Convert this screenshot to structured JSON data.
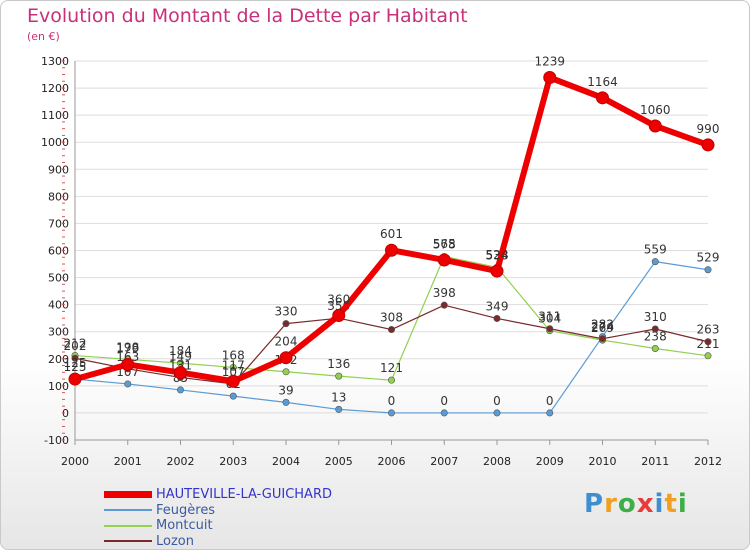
{
  "header": {
    "title": "Evolution du Montant de la Dette par Habitant",
    "subtitle": "(en €)"
  },
  "colors": {
    "title": "#c8317a",
    "hauteville": "#ee0000",
    "feugeres": "#5b9bd5",
    "montcuit": "#92d050",
    "lozon": "#7a2a2a",
    "grid": "#dddddd"
  },
  "logo": {
    "text": "Proxiti",
    "letter_colors": [
      "#3f8fd0",
      "#f0a020",
      "#3fae49",
      "#e83a3a",
      "#3f8fd0",
      "#f0a020",
      "#3fae49"
    ]
  },
  "chart_data": {
    "type": "line",
    "x": [
      "2000",
      "2001",
      "2002",
      "2003",
      "2004",
      "2005",
      "2006",
      "2007",
      "2008",
      "2009",
      "2010",
      "2011",
      "2012"
    ],
    "ylim": [
      -100,
      1300
    ],
    "yticks": [
      "-100",
      "0",
      "100",
      "200",
      "300",
      "400",
      "500",
      "600",
      "700",
      "800",
      "900",
      "1000",
      "1100",
      "1200",
      "1300"
    ],
    "grid": true,
    "legend_position": "bottom-left",
    "series": [
      {
        "name": "HAUTEVILLE-LA-GUICHARD",
        "color": "#ee0000",
        "width": 6,
        "marker": 6,
        "values": [
          125,
          179,
          149,
          117,
          204,
          360,
          601,
          565,
          524,
          1239,
          1164,
          1060,
          990
        ]
      },
      {
        "name": "Feugères",
        "color": "#5b9bd5",
        "width": 1.2,
        "marker": 3.2,
        "values": [
          125,
          107,
          85,
          62,
          39,
          13,
          0,
          0,
          0,
          0,
          282,
          559,
          529
        ]
      },
      {
        "name": "Montcuit",
        "color": "#92d050",
        "width": 1.2,
        "marker": 3.2,
        "values": [
          212,
          198,
          184,
          168,
          152,
          136,
          121,
          578,
          538,
          304,
          269,
          238,
          211
        ]
      },
      {
        "name": "Lozon",
        "color": "#7a2a2a",
        "width": 1.2,
        "marker": 3.2,
        "values": [
          202,
          163,
          131,
          107,
          330,
          350,
          308,
          398,
          349,
          311,
          274,
          310,
          263
        ]
      }
    ]
  }
}
